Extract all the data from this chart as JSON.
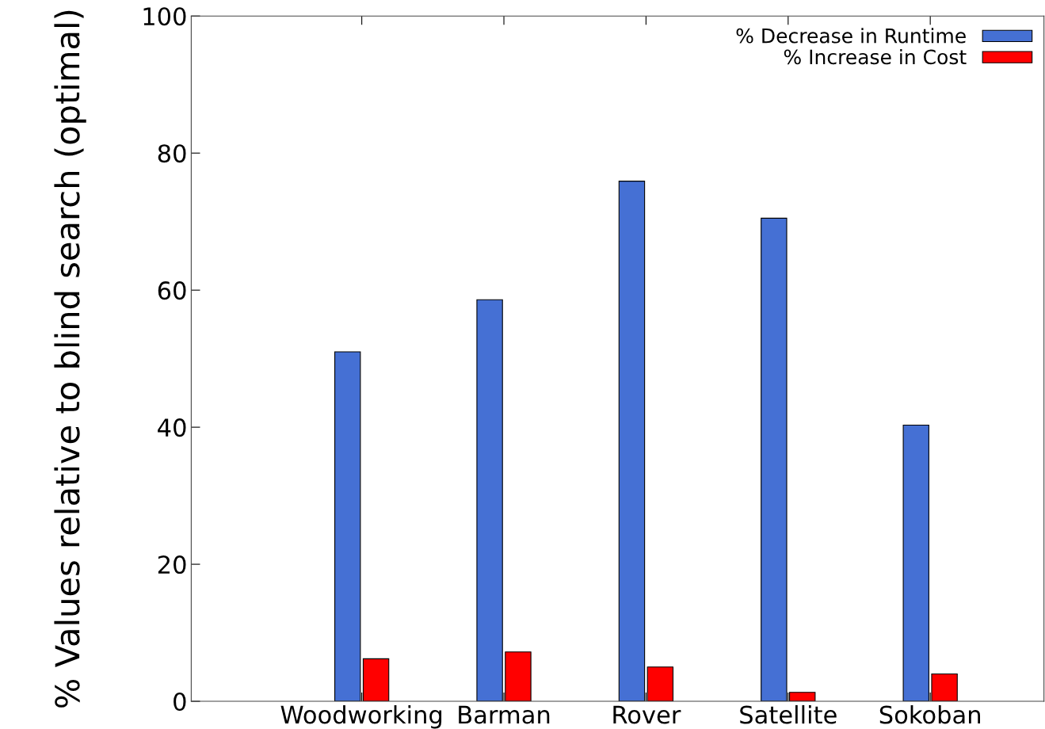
{
  "chart_data": {
    "type": "bar",
    "ylabel": "% Values relative to blind search (optimal)",
    "categories": [
      "Woodworking",
      "Barman",
      "Rover",
      "Satellite",
      "Sokoban"
    ],
    "series": [
      {
        "name": "% Decrease in Runtime",
        "color": "#4570d4",
        "values": [
          51.0,
          58.6,
          75.9,
          70.5,
          40.3
        ]
      },
      {
        "name": "% Increase in Cost",
        "color": "#ff0000",
        "values": [
          6.2,
          7.2,
          5.0,
          1.3,
          4.0
        ]
      }
    ],
    "ylim": [
      0,
      100
    ],
    "yticks": [
      0,
      20,
      40,
      60,
      80,
      100
    ],
    "grid": false,
    "legend": "top right"
  }
}
